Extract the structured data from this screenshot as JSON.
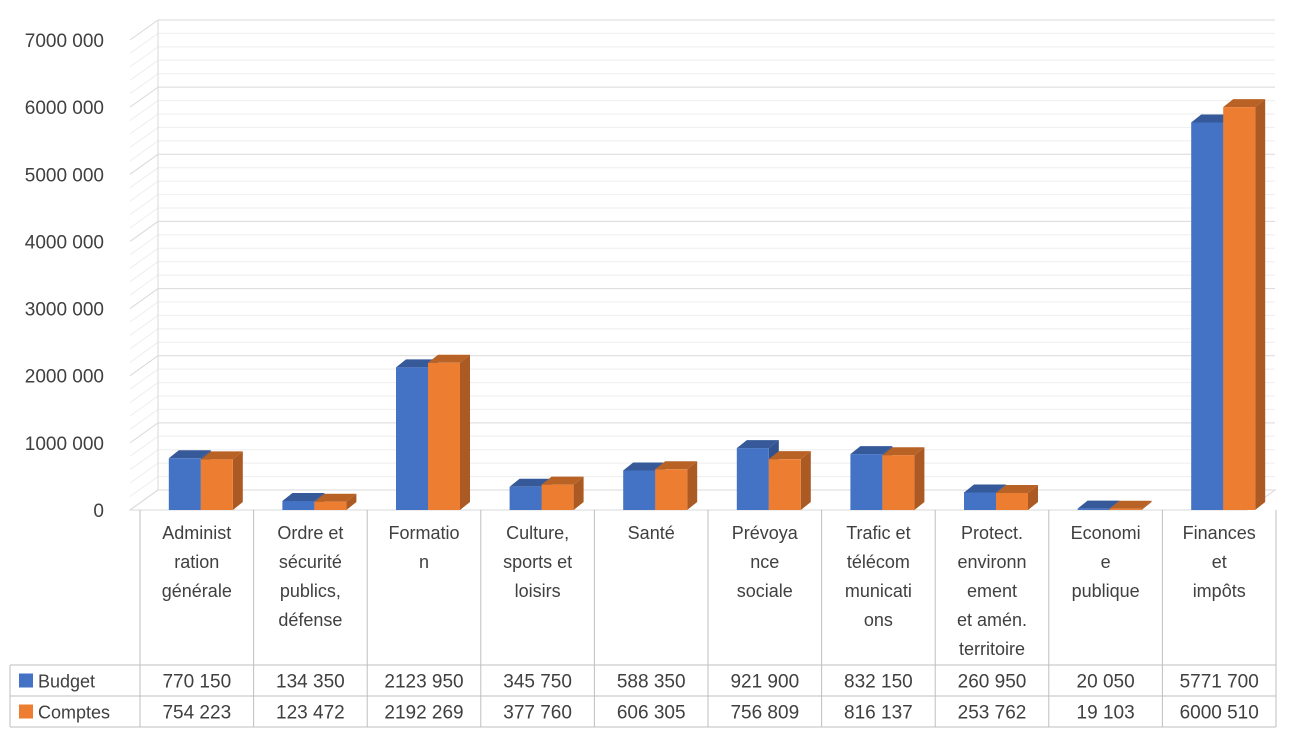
{
  "chart_data": {
    "type": "bar",
    "title": "",
    "xlabel": "",
    "ylabel": "",
    "ylim": [
      0,
      7000000
    ],
    "yticks": [
      0,
      1000000,
      2000000,
      3000000,
      4000000,
      5000000,
      6000000,
      7000000
    ],
    "ytick_labels": [
      "0",
      "1000 000",
      "2000 000",
      "3000 000",
      "4000 000",
      "5000 000",
      "6000 000",
      "7000 000"
    ],
    "categories": [
      [
        "Administ",
        "ration",
        "générale"
      ],
      [
        "Ordre et",
        "sécurité",
        "publics,",
        "défense"
      ],
      [
        "Formatio",
        "n"
      ],
      [
        "Culture,",
        "sports et",
        "loisirs"
      ],
      [
        "Santé"
      ],
      [
        "Prévoya",
        "nce",
        "sociale"
      ],
      [
        "Trafic et",
        "télécom",
        "municati",
        "ons"
      ],
      [
        "Protect.",
        "environn",
        "ement",
        "et amén.",
        "territoire"
      ],
      [
        "Economi",
        "e",
        "publique"
      ],
      [
        "Finances",
        "et",
        "impôts"
      ]
    ],
    "series": [
      {
        "name": "Budget",
        "color": "#4472C4",
        "values": [
          770150,
          134350,
          2123950,
          345750,
          588350,
          921900,
          832150,
          260950,
          20050,
          5771700
        ],
        "labels": [
          "770 150",
          "134 350",
          "2123 950",
          "345 750",
          "588 350",
          "921 900",
          "832 150",
          "260 950",
          "20 050",
          "5771 700"
        ]
      },
      {
        "name": "Comptes",
        "color": "#ED7D31",
        "values": [
          754223,
          123472,
          2192269,
          377760,
          606305,
          756809,
          816137,
          253762,
          19103,
          6000510
        ],
        "labels": [
          "754 223",
          "123 472",
          "2192 269",
          "377 760",
          "606 305",
          "756 809",
          "816 137",
          "253 762",
          "19 103",
          "6000 510"
        ]
      }
    ],
    "grid": true,
    "legend": "data-table",
    "style": "3d-clustered-column"
  }
}
